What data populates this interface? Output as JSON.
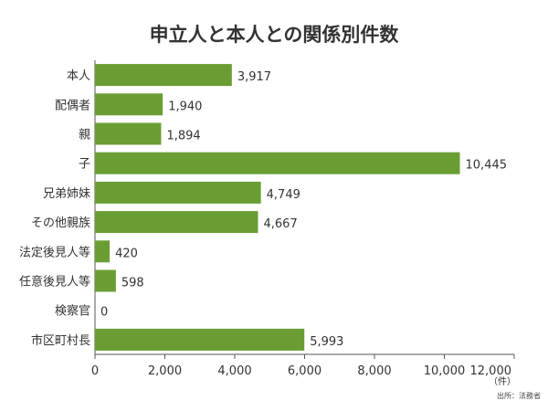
{
  "chart_data": {
    "type": "bar",
    "orientation": "horizontal",
    "title": "申立人と本人との関係別件数",
    "categories": [
      "本人",
      "配偶者",
      "親",
      "子",
      "兄弟姉妹",
      "その他親族",
      "法定後見人等",
      "任意後見人等",
      "検察官",
      "市区町村長"
    ],
    "values": [
      3917,
      1940,
      1894,
      10445,
      4749,
      4667,
      420,
      598,
      0,
      5993
    ],
    "value_labels": [
      "3,917",
      "1,940",
      "1,894",
      "10,445",
      "4,749",
      "4,667",
      "420",
      "598",
      "0",
      "5,993"
    ],
    "xticks": [
      "0",
      "2,000",
      "4,000",
      "6,000",
      "8,000",
      "10,000",
      "12,000"
    ],
    "xlim": [
      0,
      12000
    ],
    "xunit": "（件）",
    "grid": false,
    "bar_color": "#6a9e35"
  },
  "source": "出所：法務省"
}
